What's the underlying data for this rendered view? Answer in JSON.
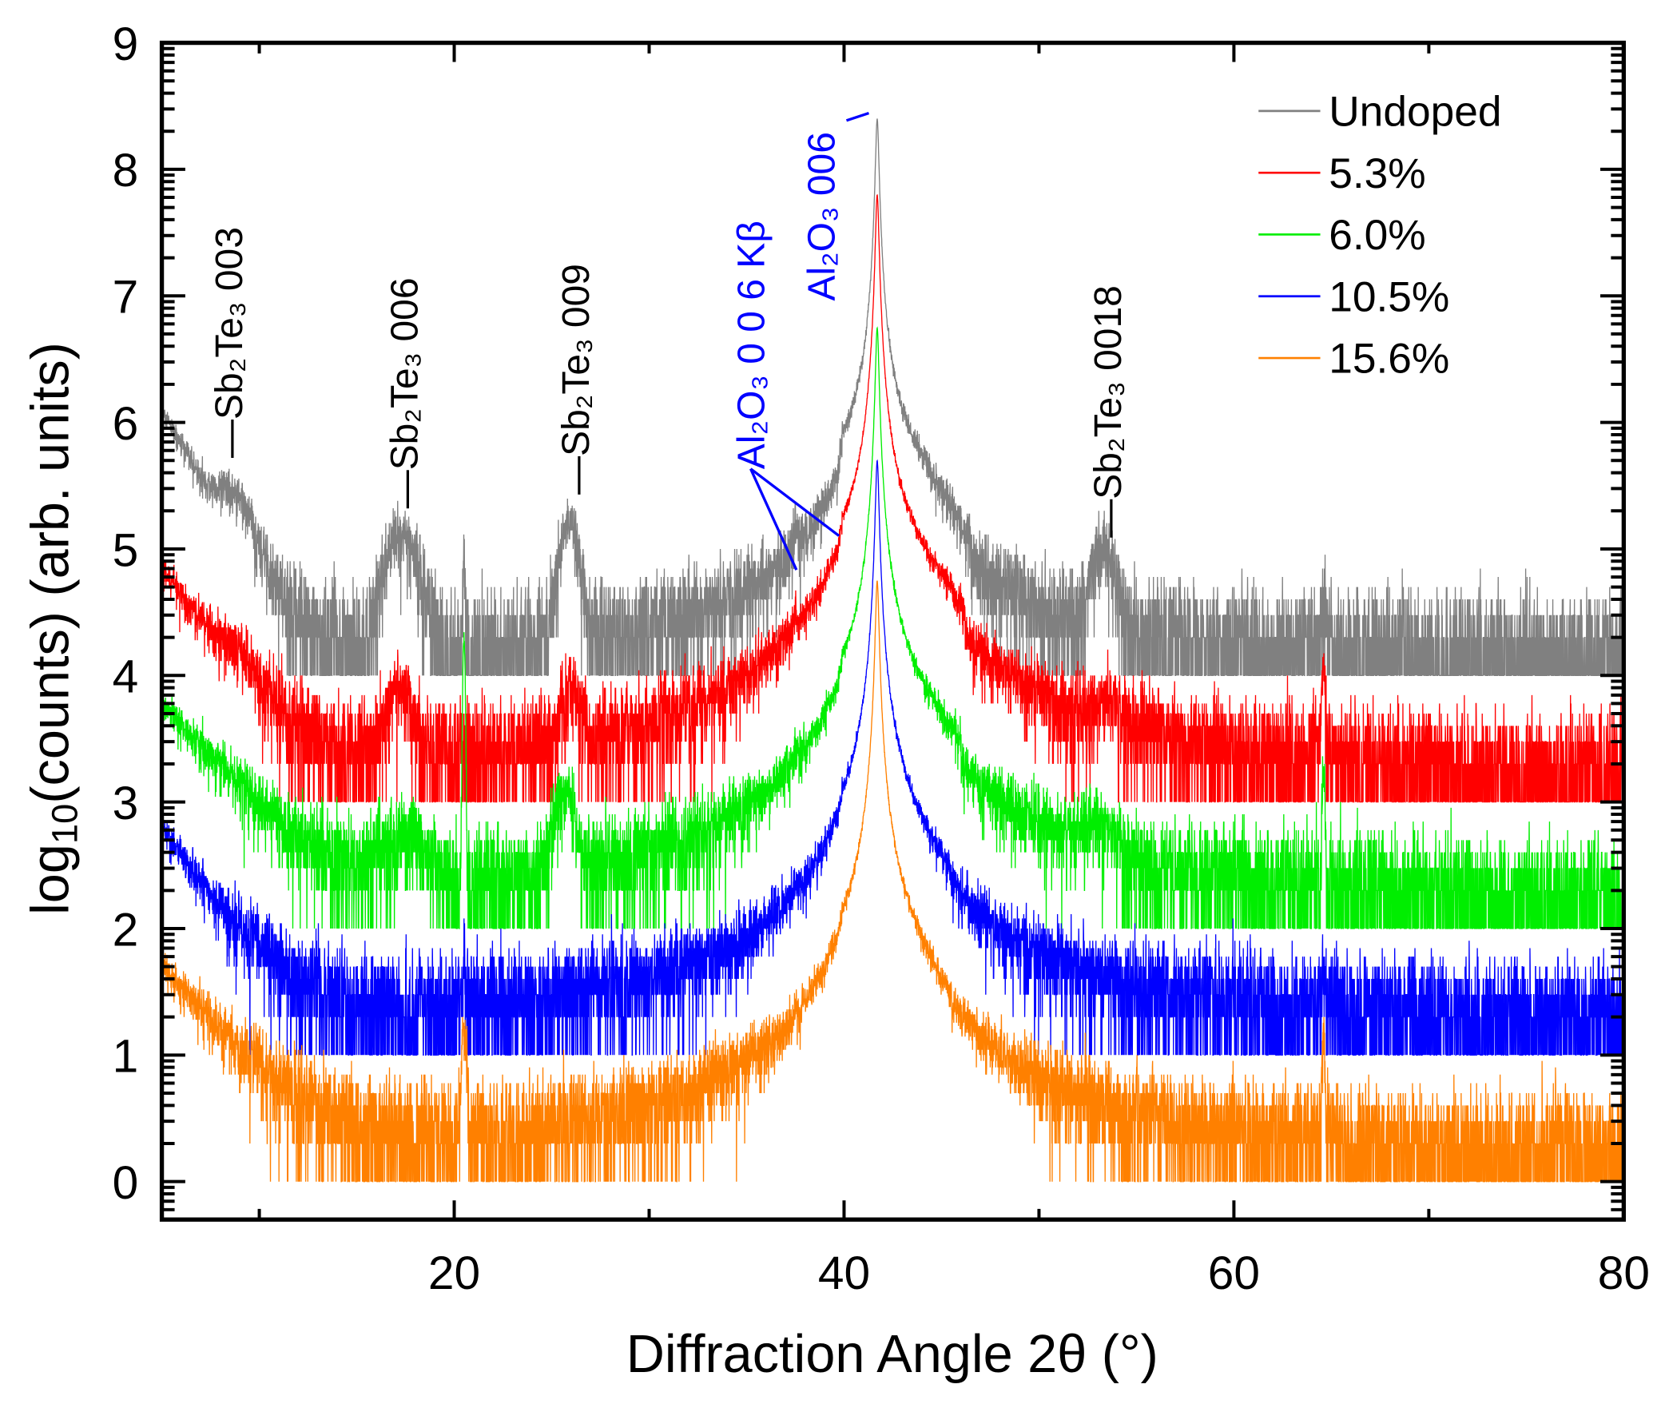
{
  "chart_data": {
    "type": "line",
    "xlabel": "Diffraction Angle  2θ (°)",
    "ylabel": "log₁₀(counts) (arb. units)",
    "xlim": [
      5,
      80
    ],
    "ylim": [
      -0.3,
      9
    ],
    "xticks": [
      20,
      40,
      60,
      80
    ],
    "xminor": [
      10,
      30,
      50,
      70
    ],
    "yticks": [
      0,
      1,
      2,
      3,
      4,
      5,
      6,
      7,
      8,
      9
    ],
    "legend_position": "top-right",
    "grid": false,
    "series": [
      {
        "name": "Undoped",
        "color": "#808080",
        "offset": 4,
        "bg": 1.4,
        "low_amp": 120,
        "low_decay": 1.6,
        "peaks": [
          [
            8.7,
            15,
            0.8
          ],
          [
            17.3,
            12,
            0.7
          ],
          [
            25.9,
            15,
            0.4
          ],
          [
            53.3,
            8,
            0.5
          ],
          [
            37.5,
            5,
            0.05
          ],
          [
            64.6,
            3,
            0.1
          ],
          [
            20.5,
            9,
            0.04
          ],
          [
            39.85,
            20,
            0.06
          ]
        ],
        "main": [
          41.7,
          25000,
          0.08
        ],
        "shoulder": [
          41.7,
          40,
          2.2,
          39.9,
          46.5
        ]
      },
      {
        "name": "5.3%",
        "color": "#ff0000",
        "offset": 3,
        "bg": 1.6,
        "low_amp": 70,
        "low_decay": 2.0,
        "peaks": [
          [
            8.8,
            5,
            0.7
          ],
          [
            17.2,
            6,
            0.6
          ],
          [
            26.0,
            4,
            0.5
          ],
          [
            37.5,
            10,
            0.05
          ],
          [
            64.6,
            8,
            0.08
          ],
          [
            53.5,
            1.5,
            1.0
          ],
          [
            39.85,
            30,
            0.06
          ]
        ],
        "main": [
          41.7,
          63000,
          0.08
        ],
        "shoulder": [
          41.7,
          60,
          2.5,
          39.9,
          46.2
        ]
      },
      {
        "name": "6.0%",
        "color": "#00ee00",
        "offset": 2,
        "bg": 1.6,
        "low_amp": 60,
        "low_decay": 2.5,
        "peaks": [
          [
            25.6,
            10,
            0.4
          ],
          [
            20.5,
            200,
            0.05
          ],
          [
            17.5,
            3,
            1.0
          ],
          [
            53.0,
            3,
            0.8
          ],
          [
            64.6,
            15,
            0.06
          ],
          [
            37.5,
            5,
            0.05
          ],
          [
            39.85,
            20,
            0.06
          ]
        ],
        "main": [
          41.7,
          56000,
          0.08
        ],
        "shoulder": [
          41.7,
          40,
          2.5,
          39.9,
          46
        ]
      },
      {
        "name": "10.5%",
        "color": "#0000ff",
        "offset": 1,
        "bg": 1.9,
        "low_amp": 60,
        "low_decay": 2.0,
        "peaks": [
          [
            20.5,
            3,
            0.05
          ],
          [
            37.5,
            4,
            0.05
          ],
          [
            64.6,
            3,
            0.08
          ],
          [
            39.85,
            15,
            0.06
          ]
        ],
        "main": [
          41.7,
          50000,
          0.08
        ],
        "shoulder": [
          41.7,
          30,
          2.0,
          39.9,
          45.5
        ]
      },
      {
        "name": "15.6%",
        "color": "#ff8000",
        "offset": 0,
        "bg": 1.6,
        "low_amp": 50,
        "low_decay": 2.5,
        "peaks": [
          [
            20.5,
            15,
            0.1
          ],
          [
            37.5,
            6,
            0.05
          ],
          [
            64.6,
            12,
            0.06
          ],
          [
            39.85,
            15,
            0.06
          ]
        ],
        "main": [
          41.7,
          56000,
          0.08
        ],
        "shoulder": [
          41.7,
          40,
          1.8,
          39.9,
          45.5
        ]
      }
    ],
    "annotations": [
      {
        "text": "—Sb₂Te₃ 003",
        "x": 8.4,
        "y": 5.72,
        "color": "#000000"
      },
      {
        "text": "—Sb₂Te₃ 006",
        "x": 17.4,
        "y": 5.32,
        "color": "#000000"
      },
      {
        "text": "—Sb₂Te₃ 009",
        "x": 26.2,
        "y": 5.43,
        "color": "#000000"
      },
      {
        "text": "Al₂O₃ 0 0 6 Kβ",
        "x": 35.2,
        "y": 5.63,
        "color": "#0000ff"
      },
      {
        "text": "Al₂O₃ 006",
        "x": 38.8,
        "y": 6.96,
        "color": "#0000ff"
      },
      {
        "text": "—Sb₂Te₃ 0018",
        "x": 53.5,
        "y": 5.09,
        "color": "#000000"
      }
    ]
  }
}
